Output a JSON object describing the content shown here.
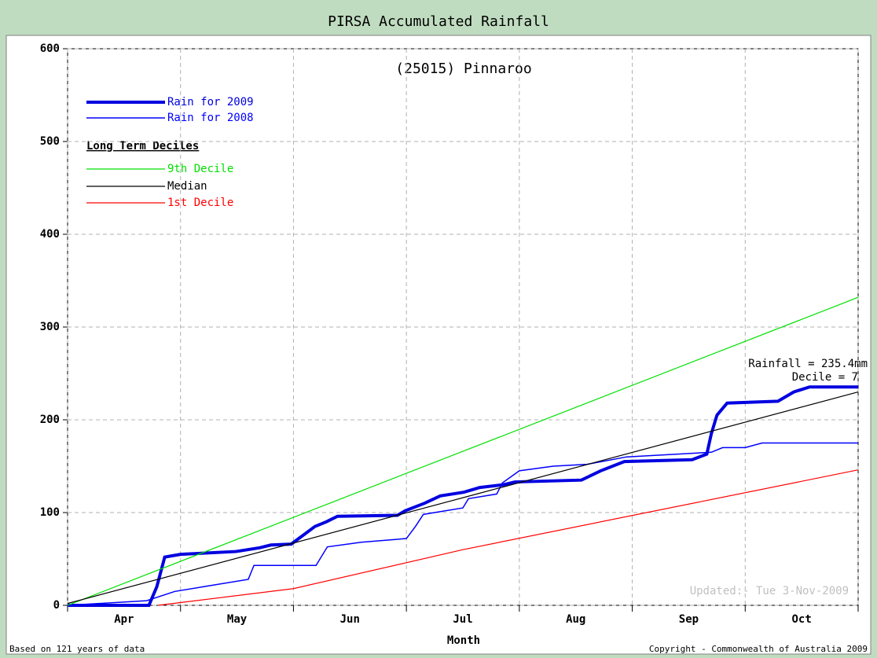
{
  "chart_data": {
    "type": "line",
    "title": "PIRSA Accumulated Rainfall",
    "subtitle": "(25015) Pinnaroo",
    "x_label": "Month",
    "categories": [
      "Apr",
      "May",
      "Jun",
      "Jul",
      "Aug",
      "Sep",
      "Oct"
    ],
    "xlim": [
      0,
      7
    ],
    "xticks": [
      0,
      1,
      2,
      3,
      4,
      5,
      6,
      7
    ],
    "ylim": [
      0,
      600
    ],
    "yticks": [
      0,
      100,
      200,
      300,
      400,
      500,
      600
    ],
    "grid": true,
    "legend_heading": "Long Term Deciles",
    "annotations": [
      "Rainfall = 235.4mm",
      "Decile = 7",
      "Updated:- Tue 3-Nov-2009"
    ],
    "footer_left": "Based on 121 years of data",
    "footer_right": "Copyright - Commonwealth of Australia 2009",
    "series": [
      {
        "name": "Rain for 2009",
        "color": "#0000e0",
        "line_width": 4,
        "x": [
          0,
          0.72,
          0.79,
          0.86,
          1.0,
          1.49,
          1.7,
          1.8,
          1.98,
          2.08,
          2.19,
          2.29,
          2.39,
          2.92,
          2.99,
          3.16,
          3.3,
          3.51,
          3.65,
          3.86,
          3.96,
          4.55,
          4.72,
          4.93,
          5.53,
          5.66,
          5.7,
          5.75,
          5.84,
          6.29,
          6.43,
          6.57,
          7.0
        ],
        "values": [
          0,
          0,
          20,
          52,
          55,
          58,
          62,
          65,
          66,
          75,
          85,
          90,
          96,
          97,
          102,
          110,
          118,
          122,
          127,
          130,
          133,
          135,
          145,
          155,
          157,
          163,
          185,
          205,
          218,
          220,
          230,
          235.4,
          235.4
        ]
      },
      {
        "name": "Rain for 2008",
        "color": "#0000ff",
        "line_width": 1.5,
        "x": [
          0,
          0.7,
          0.95,
          1.2,
          1.6,
          1.65,
          2.2,
          2.3,
          2.6,
          3.0,
          3.08,
          3.15,
          3.5,
          3.55,
          3.8,
          3.85,
          4.0,
          4.3,
          4.6,
          4.95,
          5.7,
          5.8,
          6.0,
          6.15,
          7.0
        ],
        "values": [
          0,
          5,
          15,
          20,
          28,
          43,
          43,
          63,
          68,
          72,
          85,
          98,
          105,
          115,
          120,
          132,
          145,
          150,
          152,
          160,
          165,
          170,
          170,
          175,
          175
        ]
      },
      {
        "name": "9th Decile",
        "color": "#00e000",
        "line_width": 1.2,
        "x": [
          0,
          3.5,
          7
        ],
        "values": [
          0,
          166,
          332
        ]
      },
      {
        "name": "Median",
        "color": "#000000",
        "line_width": 1.2,
        "x": [
          0,
          3.5,
          7
        ],
        "values": [
          2,
          116,
          230
        ]
      },
      {
        "name": "1st Decile",
        "color": "#ff0000",
        "line_width": 1.2,
        "x": [
          0.8,
          2,
          3.5,
          7
        ],
        "values": [
          0,
          18,
          60,
          146
        ]
      }
    ]
  }
}
